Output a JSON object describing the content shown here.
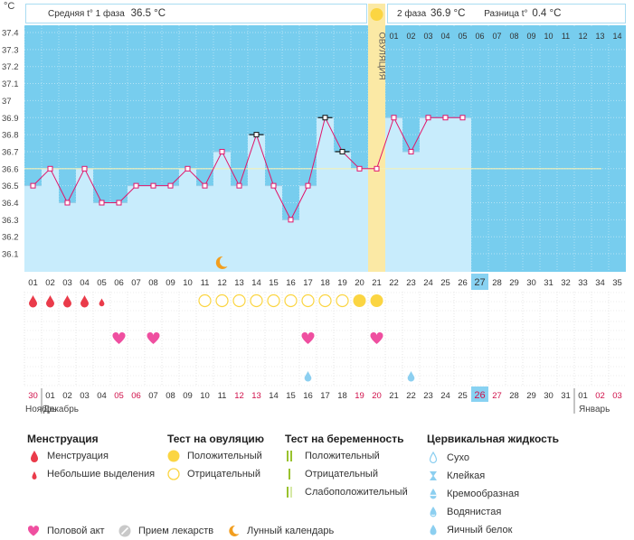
{
  "unit_label": "°C",
  "header": {
    "phase1_label": "Средняя t° 1 фаза",
    "phase1_value": "36.5 °C",
    "phase2_label": "2 фаза",
    "phase2_value": "36.9 °C",
    "diff_label": "Разница t°",
    "diff_value": "0.4 °C"
  },
  "ovulation_label": "ОВУЛЯЦИЯ",
  "phase2_day_numbers": [
    "01",
    "02",
    "03",
    "04",
    "05",
    "06",
    "07",
    "08",
    "09",
    "10",
    "11",
    "12",
    "13",
    "14"
  ],
  "cycle_days": [
    "01",
    "02",
    "03",
    "04",
    "05",
    "06",
    "07",
    "08",
    "09",
    "10",
    "11",
    "12",
    "13",
    "14",
    "15",
    "16",
    "17",
    "18",
    "19",
    "20",
    "21",
    "22",
    "23",
    "24",
    "25",
    "26",
    "27",
    "28",
    "29",
    "30",
    "31",
    "32",
    "33",
    "34",
    "35"
  ],
  "current_cycle_day": "27",
  "calendar_dates": [
    "30",
    "01",
    "02",
    "03",
    "04",
    "05",
    "06",
    "07",
    "08",
    "09",
    "10",
    "11",
    "12",
    "13",
    "14",
    "15",
    "16",
    "17",
    "18",
    "19",
    "20",
    "21",
    "22",
    "23",
    "24",
    "25",
    "26",
    "27",
    "28",
    "29",
    "30",
    "31",
    "01",
    "02",
    "03"
  ],
  "calendar_red_indices": [
    0,
    5,
    6,
    12,
    13,
    19,
    20,
    26,
    27,
    33,
    34
  ],
  "current_date": "26",
  "month_labels": [
    {
      "text": "Ноябрь"
    },
    {
      "text": "Декабрь"
    },
    {
      "text": "Январь"
    }
  ],
  "chart_data": {
    "type": "line",
    "y_ticks": [
      "37.4",
      "37.3",
      "37.2",
      "37.1",
      "37",
      "36.9",
      "36.8",
      "36.7",
      "36.6",
      "36.5",
      "36.4",
      "36.3",
      "36.2",
      "36.1"
    ],
    "ylim": [
      36.1,
      37.4
    ],
    "x": [
      1,
      2,
      3,
      4,
      5,
      6,
      7,
      8,
      9,
      10,
      11,
      12,
      13,
      14,
      15,
      16,
      17,
      18,
      19,
      20,
      21,
      22,
      23,
      24,
      25,
      26
    ],
    "temperatures": [
      36.5,
      36.6,
      36.4,
      36.6,
      36.4,
      36.4,
      36.5,
      36.5,
      36.5,
      36.6,
      36.5,
      36.7,
      36.5,
      36.8,
      36.5,
      36.3,
      36.5,
      36.9,
      36.7,
      36.6,
      36.6,
      36.9,
      36.7,
      36.9,
      36.9,
      36.9
    ],
    "flagged_days": [
      14,
      18,
      19
    ],
    "coverline": 36.6,
    "ovulation_day": 21,
    "moon_day": 12
  },
  "markers": {
    "menstruation": [
      {
        "day": 1,
        "kind": "full"
      },
      {
        "day": 2,
        "kind": "full"
      },
      {
        "day": 3,
        "kind": "full"
      },
      {
        "day": 4,
        "kind": "full"
      },
      {
        "day": 5,
        "kind": "small"
      }
    ],
    "ovulation_tests": [
      {
        "day": 11,
        "kind": "negative"
      },
      {
        "day": 12,
        "kind": "negative"
      },
      {
        "day": 13,
        "kind": "negative"
      },
      {
        "day": 14,
        "kind": "negative"
      },
      {
        "day": 15,
        "kind": "negative"
      },
      {
        "day": 16,
        "kind": "negative"
      },
      {
        "day": 17,
        "kind": "negative"
      },
      {
        "day": 18,
        "kind": "negative"
      },
      {
        "day": 19,
        "kind": "negative"
      },
      {
        "day": 20,
        "kind": "positive"
      },
      {
        "day": 21,
        "kind": "positive"
      }
    ],
    "intercourse_days": [
      6,
      8,
      17,
      21
    ],
    "cervical_days": [
      17,
      23
    ]
  },
  "legend": {
    "menstruation": {
      "title": "Менструация",
      "items": [
        "Менструация",
        "Небольшие выделения"
      ]
    },
    "ovulation_test": {
      "title": "Тест на овуляцию",
      "items": [
        "Положительный",
        "Отрицательный"
      ]
    },
    "pregnancy_test": {
      "title": "Тест на беременность",
      "items": [
        "Положительный",
        "Отрицательный",
        "Слабоположительный"
      ]
    },
    "cervical_fluid": {
      "title": "Цервикальная жидкость",
      "items": [
        "Сухо",
        "Клейкая",
        "Кремообразная",
        "Водянистая",
        "Яичный белок"
      ]
    },
    "bottom": [
      "Половой акт",
      "Прием лекарств",
      "Лунный календарь"
    ]
  },
  "colors": {
    "sky": "#77cdee",
    "bar": "#c8ecfc",
    "line": "#e0156a",
    "ovulation_band": "#fbe9a5",
    "ovulation_sun": "#fbd542",
    "red_drop": "#ea3b4a",
    "heart": "#ef4fa0",
    "cervical": "#8ccff0",
    "moon": "#f29e1e",
    "current_day": "#88d2f2",
    "green": "#99c22e"
  }
}
